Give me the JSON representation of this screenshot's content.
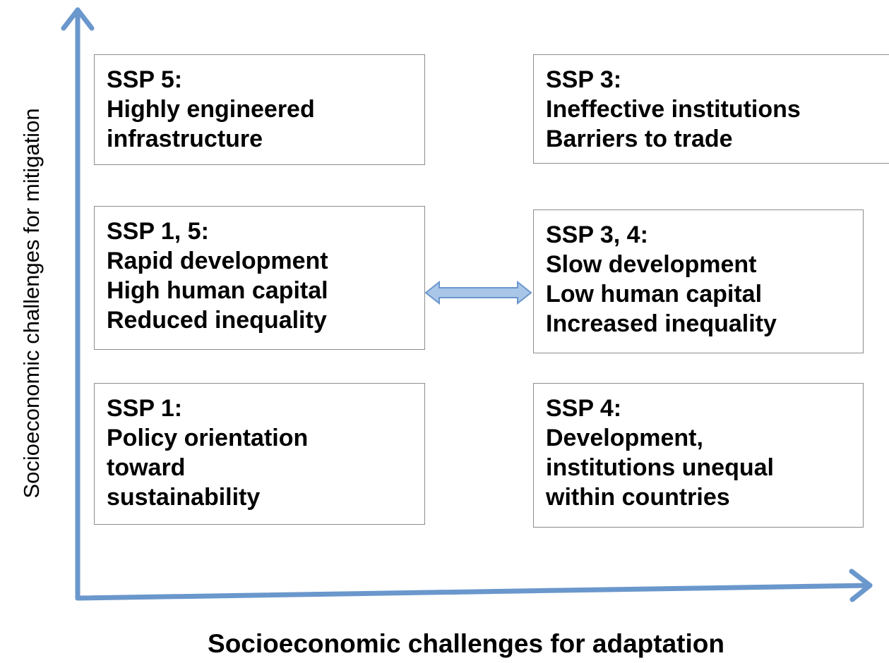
{
  "axes": {
    "y_label": "Socioeconomic challenges for mitigation",
    "x_label": "Socioeconomic challenges for adaptation"
  },
  "boxes": [
    {
      "title": "SSP 5:",
      "lines": [
        "Highly engineered",
        "infrastructure"
      ]
    },
    {
      "title": "SSP 3:",
      "lines": [
        "Ineffective institutions",
        "Barriers to trade"
      ]
    },
    {
      "title": "SSP 1, 5:",
      "lines": [
        "Rapid development",
        "High human capital",
        "Reduced inequality"
      ]
    },
    {
      "title": "SSP 3, 4:",
      "lines": [
        "Slow development",
        "Low human capital",
        "Increased inequality"
      ]
    },
    {
      "title": "SSP 1:",
      "lines": [
        "Policy orientation",
        "toward",
        "sustainability"
      ]
    },
    {
      "title": "SSP 4:",
      "lines": [
        "Development,",
        "institutions unequal",
        "within countries"
      ]
    }
  ]
}
